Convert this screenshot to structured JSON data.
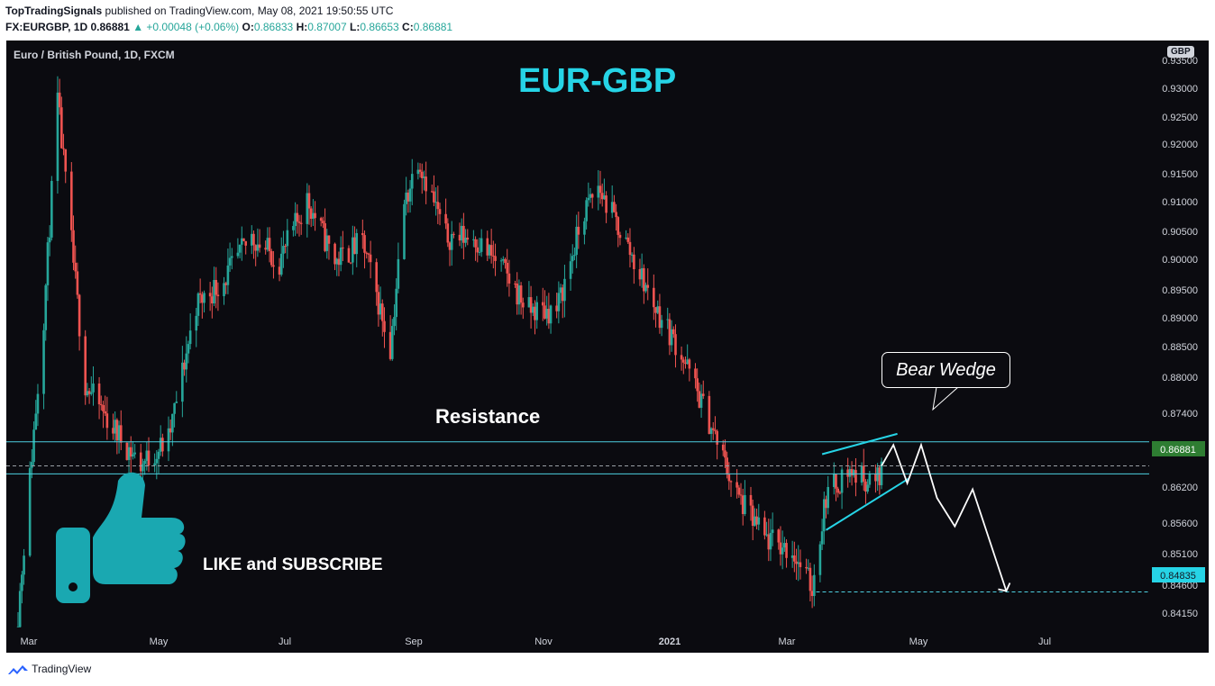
{
  "header": {
    "author": "TopTradingSignals",
    "published": "published on TradingView.com, May 08, 2021 19:50:55 UTC",
    "symbol_line": "FX:EURGBP, 1D 0.86881",
    "change": "▲ +0.00048 (+0.06%)",
    "o_label": "O:",
    "o_value": "0.86833",
    "h_label": "H:",
    "h_value": "0.87007",
    "l_label": "L:",
    "l_value": "0.86653",
    "c_label": "C:",
    "c_value": "0.86881"
  },
  "chart_info": {
    "symbol_desc": "Euro / British Pound, 1D, FXCM",
    "currency": "GBP",
    "title": "EUR-GBP",
    "resistance_label": "Resistance",
    "pattern_label": "Bear Wedge",
    "cta": "LIKE and SUBSCRIBE"
  },
  "footer": {
    "brand": "TradingView"
  },
  "colors": {
    "bull": "#26a69a",
    "bear": "#ef5350",
    "accent": "#26d4e6",
    "background": "#0b0b10",
    "price_tag": "#2e7d32"
  },
  "icons": [
    "thumbs-up-icon",
    "tradingview-logo-icon"
  ],
  "chart_data": {
    "type": "candlestick",
    "ylim": [
      0.8385,
      0.9378
    ],
    "y_ticks": [
      "0.93500",
      "0.93000",
      "0.92500",
      "0.92000",
      "0.91500",
      "0.91000",
      "0.90500",
      "0.90000",
      "0.89500",
      "0.89000",
      "0.88500",
      "0.88000",
      "0.87400",
      "0.86200",
      "0.85600",
      "0.85100",
      "0.84600",
      "0.84150"
    ],
    "x_months": [
      "Mar",
      "May",
      "Jul",
      "Sep",
      "Nov",
      "2021",
      "Mar",
      "May",
      "Jul"
    ],
    "current_price": "0.86881",
    "target_price": "0.84835",
    "resistance_band": [
      0.8727,
      0.8675
    ],
    "wedge_upper": [
      [
        "2021-04-06",
        0.8707
      ],
      [
        "2021-05-14",
        0.874
      ]
    ],
    "wedge_lower": [
      [
        "2021-04-08",
        0.8584
      ],
      [
        "2021-05-20",
        0.8668
      ]
    ],
    "projection_path": [
      [
        "2021-05-06",
        0.8688
      ],
      [
        "2021-05-12",
        0.8722
      ],
      [
        "2021-05-19",
        0.866
      ],
      [
        "2021-05-26",
        0.8722
      ],
      [
        "2021-06-03",
        0.8636
      ],
      [
        "2021-06-12",
        0.859
      ],
      [
        "2021-06-21",
        0.865
      ],
      [
        "2021-07-08",
        0.8485
      ]
    ],
    "close_path": [
      [
        "2020-02-24",
        0.841
      ],
      [
        "2020-03-02",
        0.867
      ],
      [
        "2020-03-09",
        0.893
      ],
      [
        "2020-03-16",
        0.928
      ],
      [
        "2020-03-23",
        0.905
      ],
      [
        "2020-03-30",
        0.882
      ],
      [
        "2020-04-13",
        0.875
      ],
      [
        "2020-04-27",
        0.869
      ],
      [
        "2020-05-11",
        0.873
      ],
      [
        "2020-05-25",
        0.895
      ],
      [
        "2020-06-08",
        0.899
      ],
      [
        "2020-06-22",
        0.906
      ],
      [
        "2020-07-06",
        0.902
      ],
      [
        "2020-07-20",
        0.912
      ],
      [
        "2020-08-03",
        0.902
      ],
      [
        "2020-08-17",
        0.905
      ],
      [
        "2020-08-31",
        0.888
      ],
      [
        "2020-09-07",
        0.911
      ],
      [
        "2020-09-14",
        0.919
      ],
      [
        "2020-09-28",
        0.906
      ],
      [
        "2020-10-12",
        0.906
      ],
      [
        "2020-10-26",
        0.901
      ],
      [
        "2020-11-09",
        0.894
      ],
      [
        "2020-11-23",
        0.894
      ],
      [
        "2020-12-07",
        0.91
      ],
      [
        "2020-12-14",
        0.914
      ],
      [
        "2020-12-28",
        0.905
      ],
      [
        "2021-01-11",
        0.895
      ],
      [
        "2021-01-25",
        0.887
      ],
      [
        "2021-02-08",
        0.876
      ],
      [
        "2021-02-22",
        0.864
      ],
      [
        "2021-03-08",
        0.857
      ],
      [
        "2021-03-22",
        0.855
      ],
      [
        "2021-04-01",
        0.849
      ],
      [
        "2021-04-08",
        0.864
      ],
      [
        "2021-04-19",
        0.868
      ],
      [
        "2021-05-03",
        0.866
      ],
      [
        "2021-05-07",
        0.8688
      ]
    ]
  }
}
